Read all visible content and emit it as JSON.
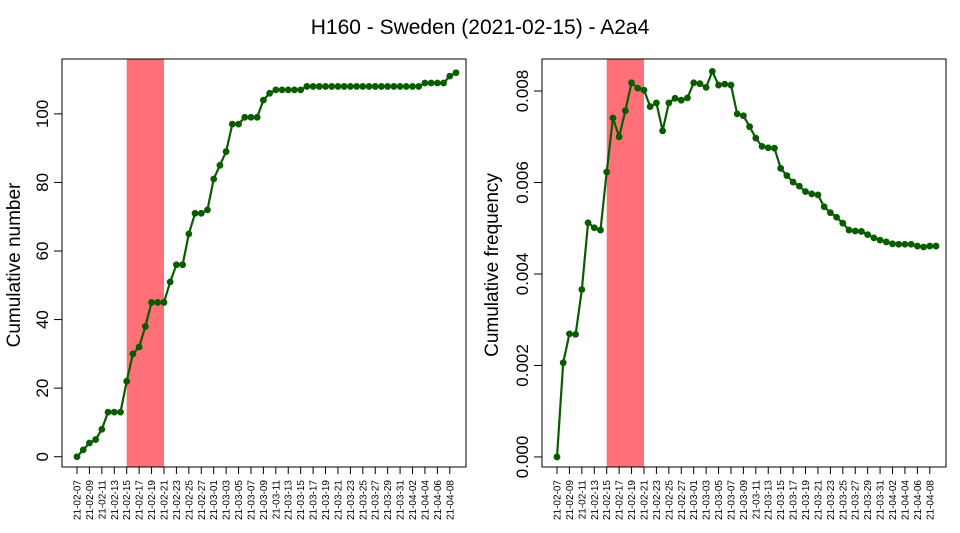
{
  "title": "H160 - Sweden (2021-02-15) - A2a4",
  "colors": {
    "line": "#0a5c00",
    "highlight": "#ff7079",
    "frame": "#000000"
  },
  "chart_data": [
    {
      "type": "line",
      "ylabel": "Cumulative number",
      "xlabel": "",
      "ylim": [
        -3,
        116
      ],
      "yticks": [
        0,
        20,
        40,
        60,
        80,
        100
      ],
      "highlight": {
        "from": "2021-02-15",
        "to": "2021-02-21"
      },
      "x_tick_labels": [
        "21-02-07",
        "21-02-09",
        "21-02-11",
        "21-02-13",
        "21-02-15",
        "21-02-17",
        "21-02-19",
        "21-02-21",
        "21-02-23",
        "21-02-25",
        "21-02-27",
        "21-03-01",
        "21-03-03",
        "21-03-05",
        "21-03-07",
        "21-03-09",
        "21-03-11",
        "21-03-13",
        "21-03-15",
        "21-03-17",
        "21-03-19",
        "21-03-21",
        "21-03-23",
        "21-03-25",
        "21-03-27",
        "21-03-29",
        "21-03-31",
        "21-04-02",
        "21-04-04",
        "21-04-06",
        "21-04-08"
      ],
      "start_date": "2021-02-07",
      "values": [
        0,
        2,
        4,
        5,
        8,
        13,
        13,
        13,
        22,
        30,
        32,
        38,
        45,
        45,
        45,
        51,
        56,
        56,
        65,
        71,
        71,
        72,
        81,
        85,
        89,
        97,
        97,
        99,
        99,
        99,
        104,
        106,
        107,
        107,
        107,
        107,
        107,
        108,
        108,
        108,
        108,
        108,
        108,
        108,
        108,
        108,
        108,
        108,
        108,
        108,
        108,
        108,
        108,
        108,
        108,
        108,
        109,
        109,
        109,
        109,
        111,
        112
      ]
    },
    {
      "type": "line",
      "ylabel": "Cumulative frequency",
      "xlabel": "",
      "ylim": [
        -0.00022,
        0.0087
      ],
      "yticks": [
        "0.000",
        "0.002",
        "0.004",
        "0.006",
        "0.008"
      ],
      "yticks_values": [
        0,
        0.002,
        0.004,
        0.006,
        0.008
      ],
      "highlight": {
        "from": "2021-02-15",
        "to": "2021-02-21"
      },
      "x_tick_labels": [
        "21-02-07",
        "21-02-09",
        "21-02-11",
        "21-02-13",
        "21-02-15",
        "21-02-17",
        "21-02-19",
        "21-02-21",
        "21-02-23",
        "21-02-25",
        "21-02-27",
        "21-03-01",
        "21-03-03",
        "21-03-05",
        "21-03-07",
        "21-03-09",
        "21-03-11",
        "21-03-13",
        "21-03-15",
        "21-03-17",
        "21-03-19",
        "21-03-21",
        "21-03-23",
        "21-03-25",
        "21-03-27",
        "21-03-29",
        "21-03-31",
        "21-04-02",
        "21-04-04",
        "21-04-06",
        "21-04-08"
      ],
      "start_date": "2021-02-07",
      "values": [
        0,
        0.00206,
        0.00269,
        0.00268,
        0.00366,
        0.00512,
        0.00501,
        0.00496,
        0.00623,
        0.00741,
        0.007,
        0.00757,
        0.00818,
        0.00806,
        0.00802,
        0.00766,
        0.00774,
        0.00713,
        0.00774,
        0.00784,
        0.0078,
        0.00785,
        0.00818,
        0.00816,
        0.00808,
        0.00843,
        0.00813,
        0.00815,
        0.00813,
        0.0075,
        0.00746,
        0.00722,
        0.00697,
        0.00679,
        0.00676,
        0.00675,
        0.00631,
        0.00615,
        0.00601,
        0.00592,
        0.0058,
        0.00575,
        0.00573,
        0.00547,
        0.00534,
        0.00524,
        0.00511,
        0.00496,
        0.00494,
        0.00493,
        0.00486,
        0.00479,
        0.00474,
        0.0047,
        0.00466,
        0.00465,
        0.00465,
        0.00465,
        0.00461,
        0.00459,
        0.00461,
        0.00461
      ]
    }
  ]
}
